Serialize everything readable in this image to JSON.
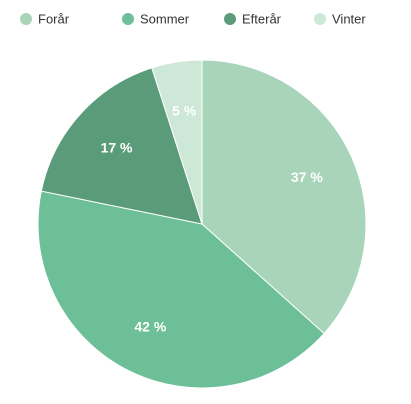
{
  "chart_data": {
    "type": "pie",
    "title": "",
    "categories": [
      "Forår",
      "Sommer",
      "Efterår",
      "Vinter"
    ],
    "values": [
      37,
      42,
      17,
      5
    ],
    "labels": [
      "37 %",
      "42 %",
      "17 %",
      "5 %"
    ],
    "colors": [
      "#a8d5b9",
      "#6cbf96",
      "#5a9c7a",
      "#cde8d7"
    ],
    "start_angle_deg": 0,
    "direction": "clockwise",
    "legend": {
      "position": "top",
      "marker": "circle"
    }
  }
}
